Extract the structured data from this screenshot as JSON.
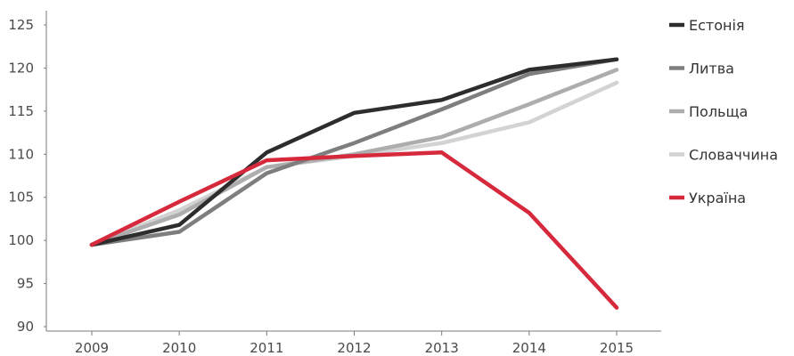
{
  "chart_data": {
    "type": "line",
    "title": "",
    "xlabel": "",
    "ylabel": "",
    "categories": [
      "2009",
      "2010",
      "2011",
      "2012",
      "2013",
      "2014",
      "2015"
    ],
    "ylim": [
      90,
      125
    ],
    "yticks": [
      90,
      95,
      100,
      105,
      110,
      115,
      120,
      125
    ],
    "grid": false,
    "legend_position": "right",
    "series": [
      {
        "name": "Словаччина",
        "color": "#d3d3d3",
        "values": [
          99.5,
          103.5,
          108.5,
          109.8,
          111.3,
          113.7,
          118.3
        ]
      },
      {
        "name": "Польща",
        "color": "#adadad",
        "values": [
          99.5,
          103,
          108.5,
          110,
          112,
          115.8,
          119.8
        ]
      },
      {
        "name": "Литва",
        "color": "#7e7e7e",
        "values": [
          99.5,
          101,
          107.8,
          111.3,
          115.2,
          119.3,
          121
        ]
      },
      {
        "name": "Естонія",
        "color": "#2d2d2d",
        "values": [
          99.5,
          101.8,
          110.2,
          114.8,
          116.3,
          119.8,
          121
        ]
      },
      {
        "name": "Україна",
        "color": "#d6293c",
        "values": [
          99.5,
          104.5,
          109.3,
          109.8,
          110.2,
          103.2,
          92.2
        ]
      }
    ],
    "legend_order": [
      "Естонія",
      "Литва",
      "Польща",
      "Словаччина",
      "Україна"
    ]
  }
}
